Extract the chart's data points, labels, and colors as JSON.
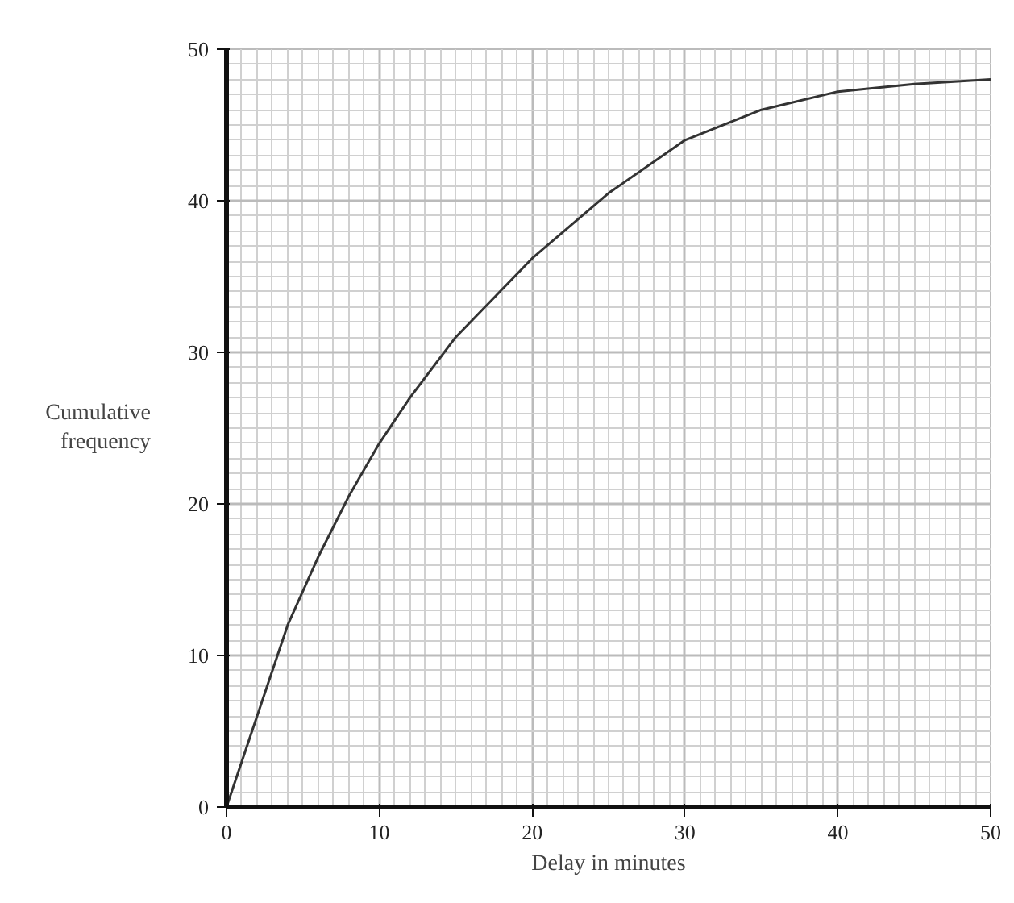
{
  "chart_data": {
    "type": "line",
    "xlabel": "Delay in minutes",
    "ylabel": "Cumulative frequency",
    "x": [
      0,
      2,
      4,
      6,
      8,
      10,
      12,
      15,
      20,
      25,
      30,
      35,
      40,
      45,
      50
    ],
    "series": [
      {
        "color": "#333333",
        "values": [
          0,
          6,
          12,
          16.5,
          20.5,
          24,
          27,
          31,
          36.2,
          40.5,
          44,
          46,
          47.2,
          47.7,
          48
        ]
      }
    ],
    "xlim": [
      0,
      50
    ],
    "ylim": [
      0,
      50
    ],
    "xticks": [
      0,
      10,
      20,
      30,
      40,
      50
    ],
    "yticks": [
      0,
      10,
      20,
      30,
      40,
      50
    ],
    "grid": true,
    "marker": "none",
    "line_style": "solid"
  }
}
